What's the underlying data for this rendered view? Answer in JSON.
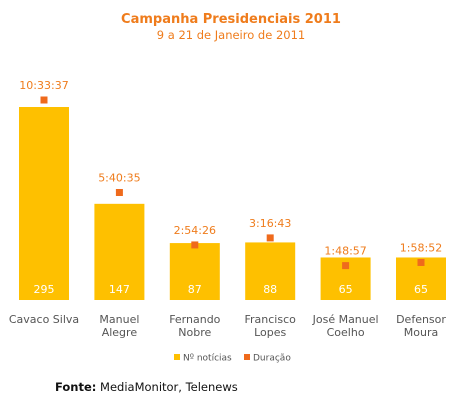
{
  "chart_data": {
    "type": "bar",
    "title": "Campanha Presidenciais 2011",
    "subtitle": "9 a 21 de Janeiro de 2011",
    "categories": [
      [
        "Cavaco Silva"
      ],
      [
        "Manuel",
        "Alegre"
      ],
      [
        "Fernando",
        "Nobre"
      ],
      [
        "Francisco",
        "Lopes"
      ],
      [
        "José Manuel",
        "Coelho"
      ],
      [
        "Defensor",
        "Moura"
      ]
    ],
    "series": [
      {
        "name": "Nº notícias",
        "values": [
          295,
          147,
          87,
          88,
          65,
          65
        ],
        "color": "#fec000"
      },
      {
        "name": "Duração",
        "values": [
          "10:33:37",
          "5:40:35",
          "2:54:26",
          "3:16:43",
          "1:48:57",
          "1:58:52"
        ],
        "color": "#ef6a1c"
      }
    ],
    "xlabel": "",
    "ylabel": "",
    "grid": false,
    "legend_position": "bottom-center"
  },
  "source": {
    "label": "Fonte:",
    "text": "MediaMonitor, Telenews"
  },
  "colors": {
    "title": "#ef7c1c",
    "duration_label": "#ef7c1c",
    "bar_value_text": "#ffffff",
    "category_text": "#555555"
  }
}
